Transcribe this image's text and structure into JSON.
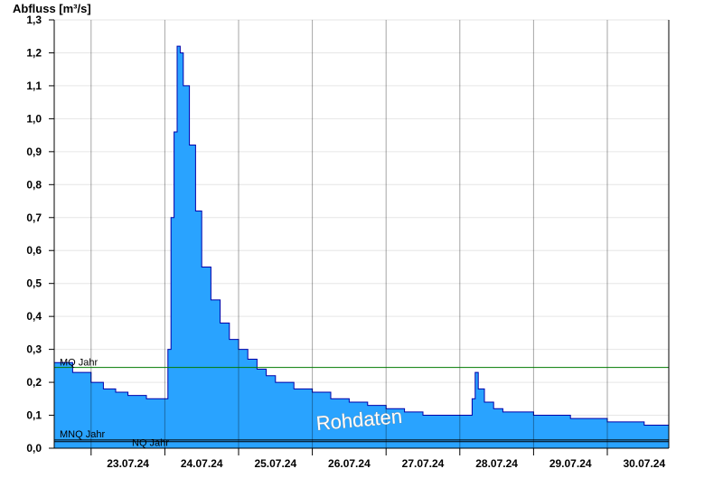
{
  "chart_data": {
    "type": "area",
    "title": "",
    "ylabel": "Abfluss [m³/s]",
    "xlabel": "",
    "ylim": [
      0,
      1.3
    ],
    "xlim": [
      "2024-07-22T12:00",
      "2024-07-30T20:00"
    ],
    "y_ticks": [
      "0,0",
      "0,1",
      "0,2",
      "0,3",
      "0,4",
      "0,5",
      "0,6",
      "0,7",
      "0,8",
      "0,9",
      "1,0",
      "1,1",
      "1,2",
      "1,3"
    ],
    "x_tick_labels": [
      "23.07.24",
      "24.07.24",
      "25.07.24",
      "26.07.24",
      "27.07.24",
      "28.07.24",
      "29.07.24",
      "30.07.24"
    ],
    "x_tick_dates": [
      "2024-07-23T12:00",
      "2024-07-24T12:00",
      "2024-07-25T12:00",
      "2024-07-26T12:00",
      "2024-07-27T12:00",
      "2024-07-28T12:00",
      "2024-07-29T12:00",
      "2024-07-30T12:00"
    ],
    "grid": true,
    "series": [
      {
        "color": "#29a3ff",
        "line_color": "#0000aa",
        "x": [
          "2024-07-22T12:00",
          "2024-07-22T18:00",
          "2024-07-23T00:00",
          "2024-07-23T04:00",
          "2024-07-23T08:00",
          "2024-07-23T12:00",
          "2024-07-23T18:00",
          "2024-07-24T00:00",
          "2024-07-24T01:00",
          "2024-07-24T02:00",
          "2024-07-24T03:00",
          "2024-07-24T04:00",
          "2024-07-24T05:00",
          "2024-07-24T06:00",
          "2024-07-24T08:00",
          "2024-07-24T10:00",
          "2024-07-24T12:00",
          "2024-07-24T15:00",
          "2024-07-24T18:00",
          "2024-07-24T21:00",
          "2024-07-25T00:00",
          "2024-07-25T03:00",
          "2024-07-25T06:00",
          "2024-07-25T09:00",
          "2024-07-25T12:00",
          "2024-07-25T18:00",
          "2024-07-26T00:00",
          "2024-07-26T06:00",
          "2024-07-26T12:00",
          "2024-07-26T18:00",
          "2024-07-27T00:00",
          "2024-07-27T06:00",
          "2024-07-27T12:00",
          "2024-07-27T18:00",
          "2024-07-28T00:00",
          "2024-07-28T03:00",
          "2024-07-28T04:00",
          "2024-07-28T05:00",
          "2024-07-28T06:00",
          "2024-07-28T08:00",
          "2024-07-28T11:00",
          "2024-07-28T14:00",
          "2024-07-28T18:00",
          "2024-07-29T00:00",
          "2024-07-29T06:00",
          "2024-07-29T12:00",
          "2024-07-29T18:00",
          "2024-07-30T00:00",
          "2024-07-30T06:00",
          "2024-07-30T12:00",
          "2024-07-30T18:00",
          "2024-07-30T20:00"
        ],
        "values": [
          0.26,
          0.23,
          0.2,
          0.18,
          0.17,
          0.16,
          0.15,
          0.15,
          0.3,
          0.7,
          0.96,
          1.22,
          1.2,
          1.1,
          0.92,
          0.72,
          0.55,
          0.45,
          0.38,
          0.33,
          0.3,
          0.27,
          0.24,
          0.22,
          0.2,
          0.18,
          0.17,
          0.15,
          0.14,
          0.13,
          0.12,
          0.11,
          0.1,
          0.1,
          0.1,
          0.1,
          0.15,
          0.23,
          0.18,
          0.14,
          0.12,
          0.11,
          0.11,
          0.1,
          0.1,
          0.09,
          0.09,
          0.08,
          0.08,
          0.07,
          0.07,
          0.07
        ]
      }
    ],
    "reference_lines": [
      {
        "label": "MQ Jahr",
        "value": 0.245,
        "color": "#007a00"
      },
      {
        "label": "MNQ Jahr",
        "value": 0.025,
        "color": "#000000"
      },
      {
        "label": "NQ Jahr",
        "value": 0.02,
        "color": "#000000"
      }
    ],
    "watermark": "Rohdaten"
  }
}
